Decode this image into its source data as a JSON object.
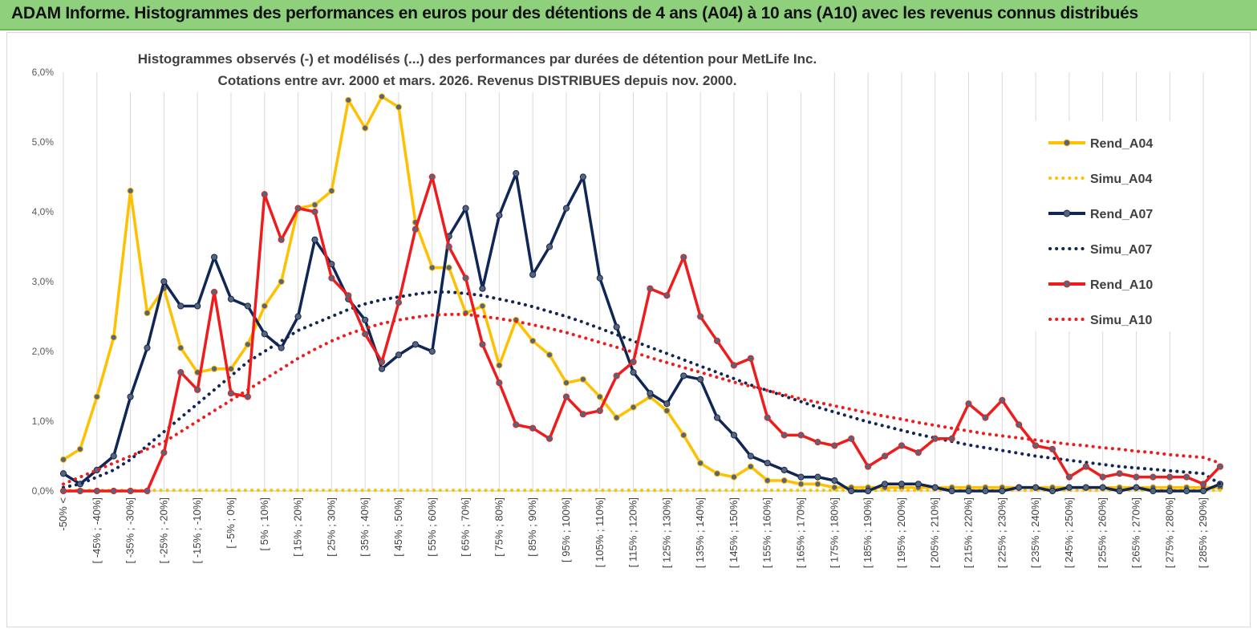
{
  "banner": {
    "title": "ADAM Informe. Histogrammes des performances en euros pour des détentions de 4 ans (A04) à 10 ans (A10) avec les revenus connus distribués"
  },
  "chart_data": {
    "type": "line",
    "title": "Histogrammes observés (-)  et modélisés (...) des performances par durées de détention pour MetLife Inc.",
    "subtitle": "Cotations entre avr. 2000 et mars. 2026. Revenus DISTRIBUES depuis nov. 2000.",
    "ylim": [
      0,
      6
    ],
    "yticks": [
      "0,0%",
      "1,0%",
      "2,0%",
      "3,0%",
      "4,0%",
      "5,0%",
      "6,0%"
    ],
    "x_labels": [
      "-50% <",
      "[ -45% ; -40%]",
      "[ -35% ; -30%]",
      "[ -25% ; -20%]",
      "[ -15% ; -10%]",
      "[ -5% ; 0%]",
      "[ 5% ; 10%]",
      "[ 15% ; 20%]",
      "[ 25% ; 30%]",
      "[ 35% ; 40%]",
      "[ 45% ; 50%]",
      "[ 55% ; 60%]",
      "[ 65% ; 70%]",
      "[ 75% ; 80%]",
      "[ 85% ; 90%]",
      "[ 95% ; 100%]",
      "[ 105% ; 110%]",
      "[ 115% ; 120%]",
      "[ 125% ; 130%]",
      "[ 135% ; 140%]",
      "[ 145% ; 150%]",
      "[ 155% ; 160%]",
      "[ 165% ; 170%]",
      "[ 175% ; 180%]",
      "[ 185% ; 190%]",
      "[ 195% ; 200%]",
      "[ 205% ; 210%]",
      "[ 215% ; 220%]",
      "[ 225% ; 230%]",
      "[ 235% ; 240%]",
      "[ 245% ; 250%]",
      "[ 255% ; 260%]",
      "[ 265% ; 270%]",
      "[ 275% ; 280%]",
      "[ 285% ; 290%]"
    ],
    "legend_position": "right",
    "series": [
      {
        "name": "Rend_A04",
        "style": "solid",
        "color": "#ffc000",
        "values": [
          0.45,
          0.6,
          1.35,
          2.2,
          4.3,
          2.55,
          2.9,
          2.05,
          1.7,
          1.75,
          1.75,
          2.1,
          2.65,
          3.0,
          4.05,
          4.1,
          4.3,
          5.6,
          5.2,
          5.65,
          5.5,
          3.85,
          3.2,
          3.2,
          2.55,
          2.65,
          1.8,
          2.45,
          2.15,
          1.95,
          1.55,
          1.6,
          1.35,
          1.05,
          1.2,
          1.35,
          1.15,
          0.8,
          0.4,
          0.25,
          0.2,
          0.35,
          0.15,
          0.15,
          0.1,
          0.1,
          0.05,
          0.05,
          0.05,
          0.05,
          0.05,
          0.05,
          0.05,
          0.05,
          0.05,
          0.05,
          0.05,
          0.05,
          0.05,
          0.05,
          0.05,
          0.05,
          0.05,
          0.05,
          0.05,
          0.05,
          0.05,
          0.05,
          0.05,
          0.05
        ]
      },
      {
        "name": "Simu_A04",
        "style": "dotted",
        "color": "#ffc000",
        "values": [
          0.01,
          0.01,
          0.01,
          0.01,
          0.01,
          0.01,
          0.01,
          0.01,
          0.01,
          0.01,
          0.01,
          0.01,
          0.01,
          0.01,
          0.01,
          0.01,
          0.01,
          0.01,
          0.01,
          0.01,
          0.01,
          0.01,
          0.01,
          0.01,
          0.01,
          0.01,
          0.01,
          0.01,
          0.01,
          0.01,
          0.01,
          0.01,
          0.01,
          0.01,
          0.01,
          0.01,
          0.01,
          0.01,
          0.01,
          0.01,
          0.01,
          0.01,
          0.01,
          0.01,
          0.01,
          0.01,
          0.01,
          0.01,
          0.01,
          0.01,
          0.01,
          0.01,
          0.01,
          0.01,
          0.01,
          0.01,
          0.01,
          0.01,
          0.01,
          0.01,
          0.01,
          0.01,
          0.01,
          0.01,
          0.01,
          0.01,
          0.01,
          0.01,
          0.01,
          0.01
        ]
      },
      {
        "name": "Rend_A07",
        "style": "solid",
        "color": "#0f2656",
        "values": [
          0.25,
          0.1,
          0.3,
          0.5,
          1.35,
          2.05,
          3.0,
          2.65,
          2.65,
          3.35,
          2.75,
          2.65,
          2.25,
          2.05,
          2.5,
          3.6,
          3.25,
          2.75,
          2.45,
          1.75,
          1.95,
          2.1,
          2.0,
          3.65,
          4.05,
          2.9,
          3.95,
          4.55,
          3.1,
          3.5,
          4.05,
          4.5,
          3.05,
          2.35,
          1.7,
          1.4,
          1.25,
          1.65,
          1.6,
          1.05,
          0.8,
          0.5,
          0.4,
          0.3,
          0.2,
          0.2,
          0.15,
          0.0,
          0.0,
          0.1,
          0.1,
          0.1,
          0.05,
          0.0,
          0.0,
          0.0,
          0.0,
          0.05,
          0.05,
          0.0,
          0.05,
          0.05,
          0.05,
          0.0,
          0.05,
          0.0,
          0.0,
          0.0,
          0.0,
          0.1
        ]
      },
      {
        "name": "Simu_A07",
        "style": "dotted",
        "color": "#0f2656",
        "values": [
          0.05,
          0.1,
          0.2,
          0.3,
          0.45,
          0.65,
          0.85,
          1.05,
          1.25,
          1.45,
          1.65,
          1.85,
          2.0,
          2.15,
          2.3,
          2.4,
          2.5,
          2.6,
          2.68,
          2.74,
          2.78,
          2.82,
          2.85,
          2.85,
          2.83,
          2.8,
          2.75,
          2.7,
          2.64,
          2.57,
          2.5,
          2.42,
          2.33,
          2.24,
          2.15,
          2.06,
          1.97,
          1.88,
          1.79,
          1.7,
          1.61,
          1.52,
          1.44,
          1.36,
          1.28,
          1.2,
          1.13,
          1.06,
          0.99,
          0.93,
          0.87,
          0.81,
          0.76,
          0.71,
          0.66,
          0.62,
          0.58,
          0.54,
          0.5,
          0.47,
          0.44,
          0.41,
          0.38,
          0.35,
          0.33,
          0.31,
          0.29,
          0.27,
          0.25,
          0.1
        ]
      },
      {
        "name": "Rend_A10",
        "style": "solid",
        "color": "#ee1c1c",
        "values": [
          0.0,
          0.0,
          0.0,
          0.0,
          0.0,
          0.0,
          0.55,
          1.7,
          1.45,
          2.85,
          1.4,
          1.35,
          4.25,
          3.6,
          4.05,
          4.0,
          3.05,
          2.8,
          2.25,
          1.85,
          2.7,
          3.75,
          4.5,
          3.5,
          3.05,
          2.1,
          1.55,
          0.95,
          0.9,
          0.75,
          1.35,
          1.1,
          1.15,
          1.65,
          1.85,
          2.9,
          2.8,
          3.35,
          2.5,
          2.15,
          1.8,
          1.9,
          1.05,
          0.8,
          0.8,
          0.7,
          0.65,
          0.75,
          0.35,
          0.5,
          0.65,
          0.55,
          0.75,
          0.75,
          1.25,
          1.05,
          1.3,
          0.95,
          0.65,
          0.6,
          0.2,
          0.35,
          0.2,
          0.25,
          0.2,
          0.2,
          0.2,
          0.2,
          0.1,
          0.35
        ]
      },
      {
        "name": "Simu_A10",
        "style": "dotted",
        "color": "#ee1c1c",
        "values": [
          0.1,
          0.2,
          0.3,
          0.4,
          0.5,
          0.6,
          0.7,
          0.85,
          1.0,
          1.15,
          1.3,
          1.45,
          1.6,
          1.75,
          1.9,
          2.03,
          2.15,
          2.25,
          2.33,
          2.4,
          2.45,
          2.49,
          2.52,
          2.53,
          2.53,
          2.5,
          2.47,
          2.43,
          2.38,
          2.33,
          2.27,
          2.2,
          2.13,
          2.06,
          1.99,
          1.91,
          1.84,
          1.77,
          1.7,
          1.63,
          1.56,
          1.5,
          1.44,
          1.38,
          1.32,
          1.27,
          1.22,
          1.17,
          1.12,
          1.07,
          1.03,
          0.98,
          0.94,
          0.9,
          0.86,
          0.82,
          0.79,
          0.76,
          0.73,
          0.7,
          0.67,
          0.65,
          0.62,
          0.6,
          0.57,
          0.55,
          0.52,
          0.5,
          0.48,
          0.4
        ]
      }
    ]
  }
}
